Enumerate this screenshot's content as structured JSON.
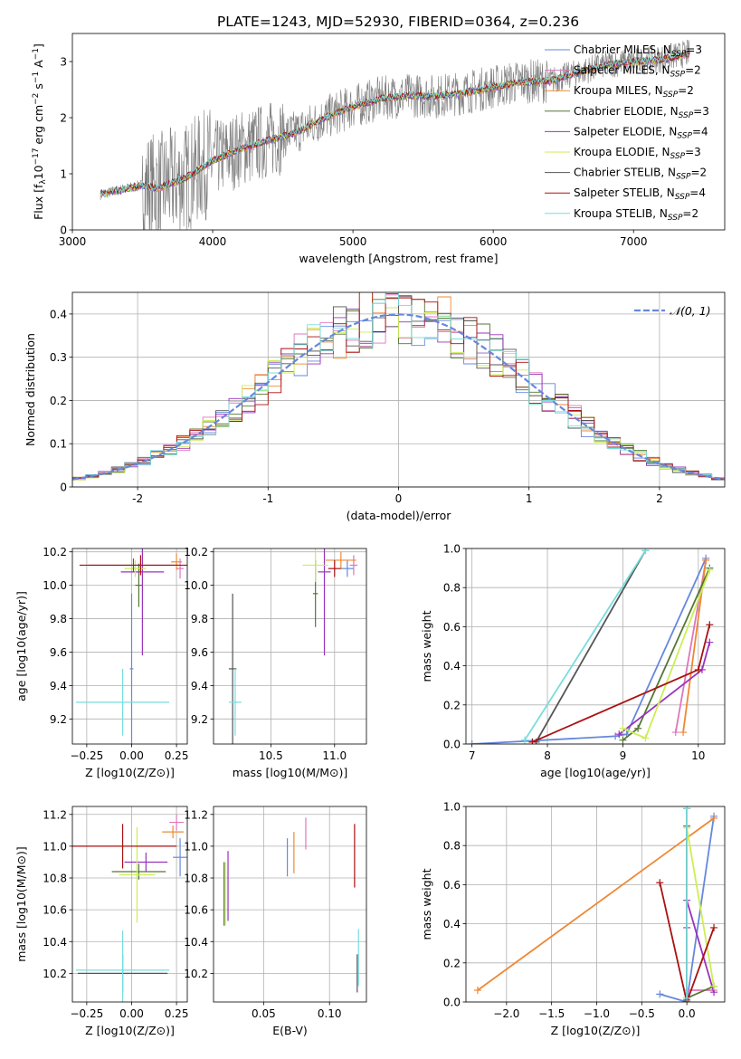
{
  "figure": {
    "title": "PLATE=1243, MJD=52930, FIBERID=0364, z=0.236"
  },
  "colors": {
    "chabrier_miles": "#6688dd",
    "salpeter_miles": "#dd77bb",
    "kroupa_miles": "#ee8833",
    "chabrier_elodie": "#557733",
    "salpeter_elodie": "#9933bb",
    "kroupa_elodie": "#ccee55",
    "chabrier_stelib": "#555555",
    "salpeter_stelib": "#aa1111",
    "kroupa_stelib": "#77dddd",
    "data": "#7f7f7f",
    "normal": "#6688dd"
  },
  "chart_data": [
    {
      "id": "spectrum",
      "type": "line",
      "title": "PLATE=1243, MJD=52930, FIBERID=0364, z=0.236",
      "xlabel": "wavelength [Angstrom, rest frame]",
      "ylabel": "Flux [f$_\\lambda$10$^{-17}$ erg cm$^{-2}$ s$^{-1}$ A$^{-1}$]",
      "ylabel_parts": {
        "a": "Flux [f",
        "b": "λ",
        "c": "10",
        "d": "−17",
        "e": " erg cm",
        "f": "−2",
        "g": " s",
        "h": "−1",
        "i": " A",
        "j": "−1",
        "k": "]"
      },
      "xlim": [
        3000,
        7650
      ],
      "ylim": [
        0,
        3.5
      ],
      "xticks": [
        3000,
        4000,
        5000,
        6000,
        7000
      ],
      "yticks": [
        0,
        1,
        2,
        3
      ],
      "grid": false,
      "legend_position": "upper-right",
      "data_series": {
        "name": "data",
        "x": [
          3200,
          3400,
          3500,
          3600,
          3800,
          4000,
          4200,
          4400,
          4600,
          4800,
          5000,
          5200,
          5400,
          5600,
          5800,
          6000,
          6200,
          6400,
          6600,
          6800,
          7000,
          7200,
          7400
        ],
        "y": [
          0.63,
          0.75,
          0.8,
          0.75,
          0.92,
          1.25,
          1.45,
          1.6,
          1.75,
          2.0,
          2.2,
          2.35,
          2.4,
          2.38,
          2.45,
          2.55,
          2.65,
          2.65,
          2.8,
          2.95,
          3.0,
          3.05,
          3.15
        ]
      },
      "model_x": [
        3200,
        3400,
        3500,
        3600,
        3800,
        4000,
        4200,
        4400,
        4600,
        4800,
        5000,
        5200,
        5400,
        5600,
        5800,
        6000,
        6200,
        6400,
        6600,
        6800,
        7000,
        7200,
        7400
      ],
      "model_y": [
        0.63,
        0.72,
        0.78,
        0.72,
        0.9,
        1.22,
        1.42,
        1.58,
        1.72,
        1.98,
        2.18,
        2.32,
        2.38,
        2.36,
        2.43,
        2.52,
        2.62,
        2.64,
        2.78,
        2.92,
        2.98,
        3.02,
        3.12
      ],
      "legend": [
        {
          "pre": "Chabrier MILES, N",
          "sub": "SSP",
          "post": "=3",
          "color_key": "chabrier_miles"
        },
        {
          "pre": "Salpeter MILES, N",
          "sub": "SSP",
          "post": "=2",
          "color_key": "salpeter_miles"
        },
        {
          "pre": "Kroupa MILES, N",
          "sub": "SSP",
          "post": "=2",
          "color_key": "kroupa_miles"
        },
        {
          "pre": "Chabrier ELODIE, N",
          "sub": "SSP",
          "post": "=3",
          "color_key": "chabrier_elodie"
        },
        {
          "pre": "Salpeter ELODIE, N",
          "sub": "SSP",
          "post": "=4",
          "color_key": "salpeter_elodie"
        },
        {
          "pre": "Kroupa ELODIE, N",
          "sub": "SSP",
          "post": "=3",
          "color_key": "kroupa_elodie"
        },
        {
          "pre": "Chabrier STELIB, N",
          "sub": "SSP",
          "post": "=2",
          "color_key": "chabrier_stelib"
        },
        {
          "pre": "Salpeter STELIB, N",
          "sub": "SSP",
          "post": "=4",
          "color_key": "salpeter_stelib"
        },
        {
          "pre": "Kroupa STELIB, N",
          "sub": "SSP",
          "post": "=2",
          "color_key": "kroupa_stelib"
        }
      ]
    },
    {
      "id": "residuals",
      "type": "histogram",
      "xlabel": "(data-model)/error",
      "ylabel": "Normed distribution",
      "xlim": [
        -2.5,
        2.5
      ],
      "ylim": [
        0,
        0.45
      ],
      "xticks": [
        -2,
        -1,
        0,
        1,
        2
      ],
      "yticks": [
        0.0,
        0.1,
        0.2,
        0.3,
        0.4
      ],
      "grid": true,
      "legend_position": "upper-right",
      "legend": [
        {
          "label": "𝒩(0, 1)",
          "color_key": "normal",
          "style": "dashed"
        }
      ],
      "bin_start": -2.5,
      "bin_width": 0.1,
      "normal": {
        "mu": 0,
        "sigma": 1
      }
    },
    {
      "id": "age-vs-z",
      "type": "errorbar",
      "xlabel": "Z [log10(Z/Z⊙)]",
      "ylabel": "age  [log10(age/yr)]",
      "xlim": [
        -0.33,
        0.31
      ],
      "ylim": [
        9.05,
        10.22
      ],
      "xticks": [
        -0.25,
        0.0,
        0.25
      ],
      "xticklabels": [
        "−0.25",
        "0.00",
        "0.25"
      ],
      "yticks": [
        9.2,
        9.4,
        9.6,
        9.8,
        10.0,
        10.2
      ],
      "yticklabels": [
        "9.2",
        "9.4",
        "9.6",
        "9.8",
        "10.0",
        "10.2"
      ],
      "grid": true,
      "points": [
        {
          "color_key": "chabrier_miles",
          "x": 0.0,
          "y": 9.5,
          "xerr": 0.01,
          "yerr": 0.45
        },
        {
          "color_key": "salpeter_miles",
          "x": 0.27,
          "y": 10.1,
          "xerr": 0.02,
          "yerr": 0.06
        },
        {
          "color_key": "kroupa_miles",
          "x": 0.25,
          "y": 10.14,
          "xerr": 0.03,
          "yerr": 0.05
        },
        {
          "color_key": "chabrier_elodie",
          "x": 0.04,
          "y": 10.0,
          "xerr": 0.02,
          "yerr": 0.13
        },
        {
          "color_key": "salpeter_elodie",
          "x": 0.06,
          "y": 10.08,
          "xerr": 0.12,
          "yerr": 0.5
        },
        {
          "color_key": "kroupa_elodie",
          "x": 0.02,
          "y": 10.1,
          "xerr": 0.06,
          "yerr": 0.05
        },
        {
          "color_key": "chabrier_stelib",
          "x": 0.01,
          "y": 10.12,
          "xerr": 0.25,
          "yerr": 0.04
        },
        {
          "color_key": "salpeter_stelib",
          "x": 0.05,
          "y": 10.12,
          "xerr": 0.34,
          "yerr": 0.06
        },
        {
          "color_key": "kroupa_stelib",
          "x": -0.05,
          "y": 9.3,
          "xerr": 0.26,
          "yerr": 0.2
        }
      ]
    },
    {
      "id": "age-vs-mass",
      "type": "errorbar",
      "xlabel": "mass [log10(M/M⊙)]",
      "ylabel": "",
      "xlim": [
        10.05,
        11.25
      ],
      "ylim": [
        9.05,
        10.22
      ],
      "xticks": [
        10.5,
        11.0
      ],
      "xticklabels": [
        "10.5",
        "11.0"
      ],
      "yticks": [
        9.2,
        9.4,
        9.6,
        9.8,
        10.0,
        10.2
      ],
      "yticklabels": [
        "9.2",
        "9.4",
        "9.6",
        "9.8",
        "10.0",
        "10.2"
      ],
      "grid": true,
      "points": [
        {
          "color_key": "chabrier_miles",
          "x": 11.1,
          "y": 10.1,
          "xerr": 0.05,
          "yerr": 0.05
        },
        {
          "color_key": "salpeter_miles",
          "x": 11.15,
          "y": 10.12,
          "xerr": 0.03,
          "yerr": 0.06
        },
        {
          "color_key": "kroupa_miles",
          "x": 11.05,
          "y": 10.15,
          "xerr": 0.12,
          "yerr": 0.05
        },
        {
          "color_key": "chabrier_elodie",
          "x": 10.85,
          "y": 9.95,
          "xerr": 0.02,
          "yerr": 0.2
        },
        {
          "color_key": "salpeter_elodie",
          "x": 10.92,
          "y": 10.08,
          "xerr": 0.05,
          "yerr": 0.5
        },
        {
          "color_key": "kroupa_elodie",
          "x": 10.85,
          "y": 10.12,
          "xerr": 0.1,
          "yerr": 0.1
        },
        {
          "color_key": "chabrier_stelib",
          "x": 10.2,
          "y": 9.5,
          "xerr": 0.03,
          "yerr": 0.45
        },
        {
          "color_key": "salpeter_stelib",
          "x": 11.0,
          "y": 10.1,
          "xerr": 0.05,
          "yerr": 0.05
        },
        {
          "color_key": "kroupa_stelib",
          "x": 10.22,
          "y": 9.3,
          "xerr": 0.05,
          "yerr": 0.2
        }
      ]
    },
    {
      "id": "weight-vs-age",
      "type": "line",
      "xlabel": "age  [log10(age/yr)]",
      "ylabel": "mass weight",
      "xlim": [
        6.92,
        10.35
      ],
      "ylim": [
        0,
        1.0
      ],
      "xticks": [
        7,
        8,
        9,
        10
      ],
      "xticklabels": [
        "7",
        "8",
        "9",
        "10"
      ],
      "yticks": [
        0,
        0.2,
        0.4,
        0.6,
        0.8,
        1.0
      ],
      "yticklabels": [
        "0.0",
        "0.2",
        "0.4",
        "0.6",
        "0.8",
        "1.0"
      ],
      "grid": true,
      "series": [
        {
          "color_key": "chabrier_miles",
          "x": [
            7.0,
            8.9,
            9.05,
            10.1
          ],
          "y": [
            0.0,
            0.04,
            0.05,
            0.95
          ]
        },
        {
          "color_key": "salpeter_miles",
          "x": [
            9.7,
            10.1
          ],
          "y": [
            0.06,
            0.94
          ]
        },
        {
          "color_key": "kroupa_miles",
          "x": [
            9.8,
            10.1
          ],
          "y": [
            0.06,
            0.94
          ]
        },
        {
          "color_key": "chabrier_elodie",
          "x": [
            9.0,
            9.2,
            10.15
          ],
          "y": [
            0.02,
            0.08,
            0.9
          ]
        },
        {
          "color_key": "salpeter_elodie",
          "x": [
            8.95,
            10.05,
            10.15
          ],
          "y": [
            0.05,
            0.38,
            0.52
          ]
        },
        {
          "color_key": "kroupa_elodie",
          "x": [
            9.0,
            9.3,
            10.15
          ],
          "y": [
            0.08,
            0.03,
            0.89
          ]
        },
        {
          "color_key": "chabrier_stelib",
          "x": [
            7.85,
            9.3
          ],
          "y": [
            0.01,
            0.99
          ]
        },
        {
          "color_key": "salpeter_stelib",
          "x": [
            7.8,
            10.0,
            10.15
          ],
          "y": [
            0.01,
            0.38,
            0.61
          ]
        },
        {
          "color_key": "kroupa_stelib",
          "x": [
            7.7,
            9.3
          ],
          "y": [
            0.02,
            0.99
          ]
        }
      ]
    },
    {
      "id": "mass-vs-z",
      "type": "errorbar",
      "xlabel": "Z [log10(Z/Z⊙)]",
      "ylabel": "mass [log10(M/M⊙)]",
      "xlim": [
        -0.33,
        0.31
      ],
      "ylim": [
        10.02,
        11.25
      ],
      "xticks": [
        -0.25,
        0.0,
        0.25
      ],
      "xticklabels": [
        "−0.25",
        "0.00",
        "0.25"
      ],
      "yticks": [
        10.2,
        10.4,
        10.6,
        10.8,
        11.0,
        11.2
      ],
      "yticklabels": [
        "10.2",
        "10.4",
        "10.6",
        "10.8",
        "11.0",
        "11.2"
      ],
      "grid": true,
      "points": [
        {
          "color_key": "chabrier_miles",
          "x": 0.27,
          "y": 10.93,
          "xerr": 0.04,
          "yerr": 0.12
        },
        {
          "color_key": "salpeter_miles",
          "x": 0.25,
          "y": 11.15,
          "xerr": 0.04,
          "yerr": 0.05
        },
        {
          "color_key": "kroupa_miles",
          "x": 0.23,
          "y": 11.09,
          "xerr": 0.06,
          "yerr": 0.04
        },
        {
          "color_key": "chabrier_elodie",
          "x": 0.04,
          "y": 10.84,
          "xerr": 0.15,
          "yerr": 0.05
        },
        {
          "color_key": "salpeter_elodie",
          "x": 0.08,
          "y": 10.9,
          "xerr": 0.12,
          "yerr": 0.06
        },
        {
          "color_key": "kroupa_elodie",
          "x": 0.03,
          "y": 10.82,
          "xerr": 0.1,
          "yerr": 0.3
        },
        {
          "color_key": "chabrier_stelib",
          "x": -0.05,
          "y": 10.2,
          "xerr": 0.25,
          "yerr": 0.12
        },
        {
          "color_key": "salpeter_stelib",
          "x": -0.05,
          "y": 11.0,
          "xerr": 0.3,
          "yerr": 0.14
        },
        {
          "color_key": "kroupa_stelib",
          "x": -0.05,
          "y": 10.22,
          "xerr": 0.26,
          "yerr": 0.25
        }
      ]
    },
    {
      "id": "mass-vs-ebv",
      "type": "errorbar",
      "xlabel": "E(B-V)",
      "ylabel": "",
      "xlim": [
        0.012,
        0.128
      ],
      "ylim": [
        10.02,
        11.25
      ],
      "xticks": [
        0.05,
        0.1
      ],
      "xticklabels": [
        "0.05",
        "0.10"
      ],
      "yticks": [
        10.2,
        10.4,
        10.6,
        10.8,
        11.0,
        11.2
      ],
      "yticklabels": [
        "10.2",
        "10.4",
        "10.6",
        "10.8",
        "11.0",
        "11.2"
      ],
      "grid": true,
      "points": [
        {
          "color_key": "chabrier_miles",
          "x": 0.068,
          "y": 10.93,
          "xerr": 0.0,
          "yerr": 0.12
        },
        {
          "color_key": "salpeter_miles",
          "x": 0.082,
          "y": 11.08,
          "xerr": 0.0,
          "yerr": 0.1
        },
        {
          "color_key": "kroupa_miles",
          "x": 0.073,
          "y": 10.96,
          "xerr": 0.0,
          "yerr": 0.13
        },
        {
          "color_key": "chabrier_elodie",
          "x": 0.02,
          "y": 10.7,
          "xerr": 0.0,
          "yerr": 0.2
        },
        {
          "color_key": "salpeter_elodie",
          "x": 0.023,
          "y": 10.75,
          "xerr": 0.0,
          "yerr": 0.22
        },
        {
          "color_key": "kroupa_elodie",
          "x": 0.021,
          "y": 10.7,
          "xerr": 0.0,
          "yerr": 0.2
        },
        {
          "color_key": "chabrier_stelib",
          "x": 0.121,
          "y": 10.2,
          "xerr": 0.0,
          "yerr": 0.12
        },
        {
          "color_key": "salpeter_stelib",
          "x": 0.119,
          "y": 10.94,
          "xerr": 0.0,
          "yerr": 0.2
        },
        {
          "color_key": "kroupa_stelib",
          "x": 0.122,
          "y": 10.3,
          "xerr": 0.0,
          "yerr": 0.18
        }
      ]
    },
    {
      "id": "weight-vs-z",
      "type": "line",
      "xlabel": "Z [log10(Z/Z⊙)]",
      "ylabel": "mass weight",
      "xlim": [
        -2.45,
        0.42
      ],
      "ylim": [
        0,
        1.0
      ],
      "xticks": [
        -2.0,
        -1.5,
        -1.0,
        -0.5,
        0.0
      ],
      "xticklabels": [
        "−2.0",
        "−1.5",
        "−1.0",
        "−0.5",
        "0.0"
      ],
      "yticks": [
        0,
        0.2,
        0.4,
        0.6,
        0.8,
        1.0
      ],
      "yticklabels": [
        "0.0",
        "0.2",
        "0.4",
        "0.6",
        "0.8",
        "1.0"
      ],
      "grid": true,
      "series": [
        {
          "color_key": "chabrier_miles",
          "x": [
            -0.3,
            0.0,
            0.3
          ],
          "y": [
            0.04,
            0.0,
            0.95
          ]
        },
        {
          "color_key": "salpeter_miles",
          "x": [
            0.0,
            0.3
          ],
          "y": [
            0.06,
            0.06
          ]
        },
        {
          "color_key": "kroupa_miles",
          "x": [
            -2.32,
            0.3
          ],
          "y": [
            0.06,
            0.94
          ]
        },
        {
          "color_key": "chabrier_elodie",
          "x": [
            0.0,
            0.0,
            0.3
          ],
          "y": [
            0.9,
            0.02,
            0.08
          ]
        },
        {
          "color_key": "salpeter_elodie",
          "x": [
            0.0,
            0.0,
            0.3
          ],
          "y": [
            0.38,
            0.52,
            0.05
          ]
        },
        {
          "color_key": "kroupa_elodie",
          "x": [
            0.0,
            0.3
          ],
          "y": [
            0.89,
            0.08
          ]
        },
        {
          "color_key": "chabrier_stelib",
          "x": [
            0.0,
            0.0
          ],
          "y": [
            0.01,
            0.99
          ]
        },
        {
          "color_key": "salpeter_stelib",
          "x": [
            -0.3,
            0.0,
            0.3
          ],
          "y": [
            0.61,
            0.0,
            0.38
          ]
        },
        {
          "color_key": "kroupa_stelib",
          "x": [
            0.0,
            0.0
          ],
          "y": [
            0.02,
            0.99
          ]
        }
      ]
    }
  ]
}
